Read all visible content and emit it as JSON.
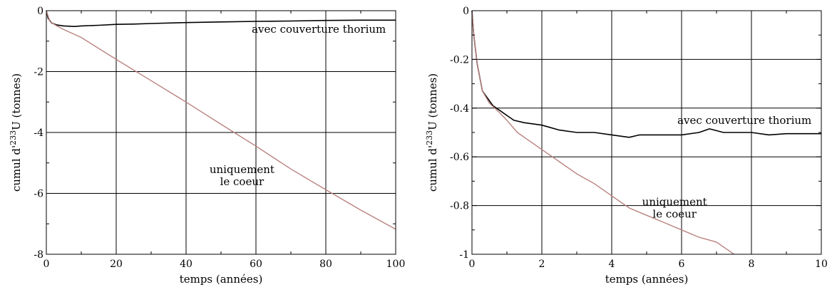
{
  "chart_data": [
    {
      "type": "line",
      "xlabel": "temps (années)",
      "ylabel_prefix": "cumul d'",
      "ylabel_sup": "233",
      "ylabel_suffix": "U (tonnes)",
      "xlim": [
        0,
        100
      ],
      "ylim": [
        -8,
        0
      ],
      "xticks": [
        0,
        20,
        40,
        60,
        80,
        100
      ],
      "yticks": [
        -8,
        -6,
        -4,
        -2,
        0
      ],
      "xtick_labels": [
        "0",
        "20",
        "40",
        "60",
        "80",
        "100"
      ],
      "ytick_labels": [
        "-8",
        "-6",
        "-4",
        "-2",
        "0"
      ],
      "grid": true,
      "series": [
        {
          "name": "avec couverture thorium",
          "color": "#000000",
          "points": [
            [
              0,
              0
            ],
            [
              0.5,
              -0.25
            ],
            [
              1.5,
              -0.4
            ],
            [
              3,
              -0.47
            ],
            [
              5,
              -0.5
            ],
            [
              8,
              -0.52
            ],
            [
              10,
              -0.5
            ],
            [
              15,
              -0.48
            ],
            [
              20,
              -0.45
            ],
            [
              25,
              -0.44
            ],
            [
              30,
              -0.42
            ],
            [
              40,
              -0.39
            ],
            [
              50,
              -0.37
            ],
            [
              60,
              -0.35
            ],
            [
              70,
              -0.34
            ],
            [
              80,
              -0.32
            ],
            [
              90,
              -0.31
            ],
            [
              100,
              -0.31
            ]
          ]
        },
        {
          "name": "uniquement le coeur",
          "color": "#b98380",
          "points": [
            [
              0,
              0
            ],
            [
              1,
              -0.35
            ],
            [
              3,
              -0.5
            ],
            [
              5,
              -0.62
            ],
            [
              10,
              -0.88
            ],
            [
              20,
              -1.6
            ],
            [
              30,
              -2.3
            ],
            [
              40,
              -3.0
            ],
            [
              50,
              -3.73
            ],
            [
              60,
              -4.45
            ],
            [
              70,
              -5.2
            ],
            [
              80,
              -5.88
            ],
            [
              90,
              -6.55
            ],
            [
              100,
              -7.18
            ]
          ]
        }
      ],
      "annotations": [
        {
          "lines": [
            "avec couverture thorium"
          ],
          "x": 78,
          "y": -0.73
        },
        {
          "lines": [
            "uniquement",
            "le coeur"
          ],
          "x": 56,
          "y": -5.33
        }
      ]
    },
    {
      "type": "line",
      "xlabel": "temps (années)",
      "ylabel_prefix": "cumul d'",
      "ylabel_sup": "233",
      "ylabel_suffix": "U (tonnes)",
      "xlim": [
        0,
        10
      ],
      "ylim": [
        -1,
        0
      ],
      "xticks": [
        0,
        2,
        4,
        6,
        8,
        10
      ],
      "yticks": [
        -1,
        -0.8,
        -0.6,
        -0.4,
        -0.2,
        0
      ],
      "xtick_labels": [
        "0",
        "2",
        "4",
        "6",
        "8",
        "10"
      ],
      "ytick_labels": [
        "-1",
        "-0.8",
        "-0.6",
        "-0.4",
        "-0.2",
        "0"
      ],
      "grid": true,
      "series": [
        {
          "name": "avec couverture thorium",
          "color": "#000000",
          "points": [
            [
              0,
              0
            ],
            [
              0.05,
              -0.1
            ],
            [
              0.15,
              -0.22
            ],
            [
              0.3,
              -0.33
            ],
            [
              0.45,
              -0.36
            ],
            [
              0.6,
              -0.39
            ],
            [
              0.8,
              -0.41
            ],
            [
              1.0,
              -0.43
            ],
            [
              1.2,
              -0.45
            ],
            [
              1.5,
              -0.46
            ],
            [
              2.0,
              -0.47
            ],
            [
              2.5,
              -0.49
            ],
            [
              3.0,
              -0.5
            ],
            [
              3.5,
              -0.5
            ],
            [
              4.0,
              -0.51
            ],
            [
              4.5,
              -0.52
            ],
            [
              4.8,
              -0.51
            ],
            [
              5.5,
              -0.51
            ],
            [
              6.0,
              -0.51
            ],
            [
              6.5,
              -0.5
            ],
            [
              6.8,
              -0.485
            ],
            [
              7.2,
              -0.5
            ],
            [
              7.6,
              -0.5
            ],
            [
              8.0,
              -0.5
            ],
            [
              8.5,
              -0.51
            ],
            [
              9.0,
              -0.505
            ],
            [
              10,
              -0.505
            ]
          ]
        },
        {
          "name": "uniquement le coeur",
          "color": "#b98380",
          "points": [
            [
              0,
              0
            ],
            [
              0.05,
              -0.1
            ],
            [
              0.15,
              -0.22
            ],
            [
              0.3,
              -0.33
            ],
            [
              0.5,
              -0.38
            ],
            [
              0.8,
              -0.42
            ],
            [
              1.0,
              -0.45
            ],
            [
              1.3,
              -0.5
            ],
            [
              1.6,
              -0.53
            ],
            [
              2.0,
              -0.57
            ],
            [
              2.5,
              -0.62
            ],
            [
              3.0,
              -0.67
            ],
            [
              3.5,
              -0.71
            ],
            [
              4.0,
              -0.76
            ],
            [
              4.5,
              -0.81
            ],
            [
              5.0,
              -0.84
            ],
            [
              5.5,
              -0.87
            ],
            [
              6.0,
              -0.9
            ],
            [
              6.5,
              -0.93
            ],
            [
              7.0,
              -0.95
            ],
            [
              7.5,
              -1.0
            ]
          ]
        }
      ],
      "annotations": [
        {
          "lines": [
            "avec couverture thorium"
          ],
          "x": 7.8,
          "y": -0.465
        },
        {
          "lines": [
            "uniquement",
            "le coeur"
          ],
          "x": 5.8,
          "y": -0.8
        }
      ]
    }
  ]
}
